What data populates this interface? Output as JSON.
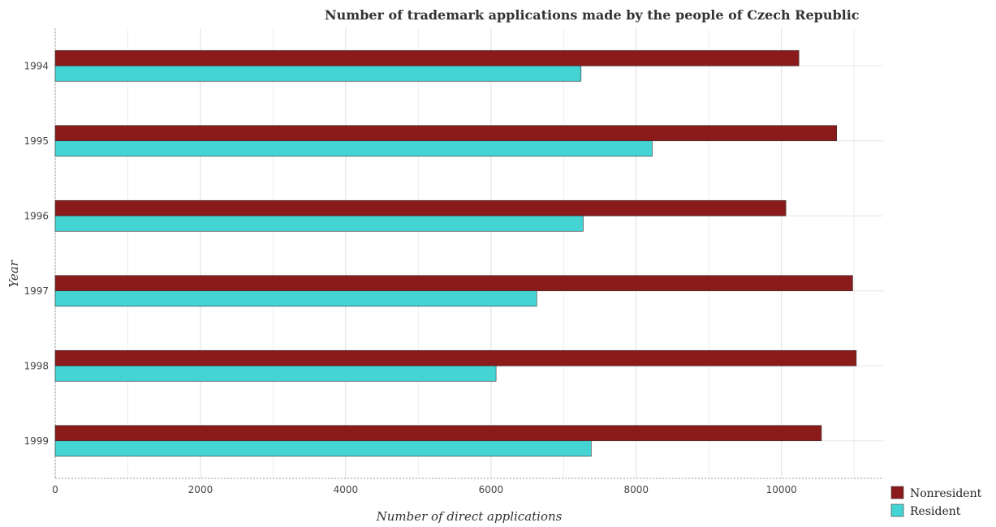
{
  "chart_data": {
    "type": "bar",
    "orientation": "horizontal",
    "title": "Number of trademark applications made by the people of Czech Republic",
    "xlabel": "Number of direct applications",
    "ylabel": "Year",
    "categories": [
      "1994",
      "1995",
      "1996",
      "1997",
      "1998",
      "1999"
    ],
    "xlim": [
      0,
      11400
    ],
    "xticks": [
      0,
      2000,
      4000,
      6000,
      8000,
      10000
    ],
    "grid": true,
    "legend_position": "bottom-right",
    "series": [
      {
        "name": "Nonresident",
        "color": "#8b1a1a",
        "values": [
          10240,
          10760,
          10060,
          10980,
          11030,
          10550
        ]
      },
      {
        "name": "Resident",
        "color": "#45d4d4",
        "values": [
          7240,
          8220,
          7270,
          6630,
          6070,
          7380
        ]
      }
    ]
  }
}
